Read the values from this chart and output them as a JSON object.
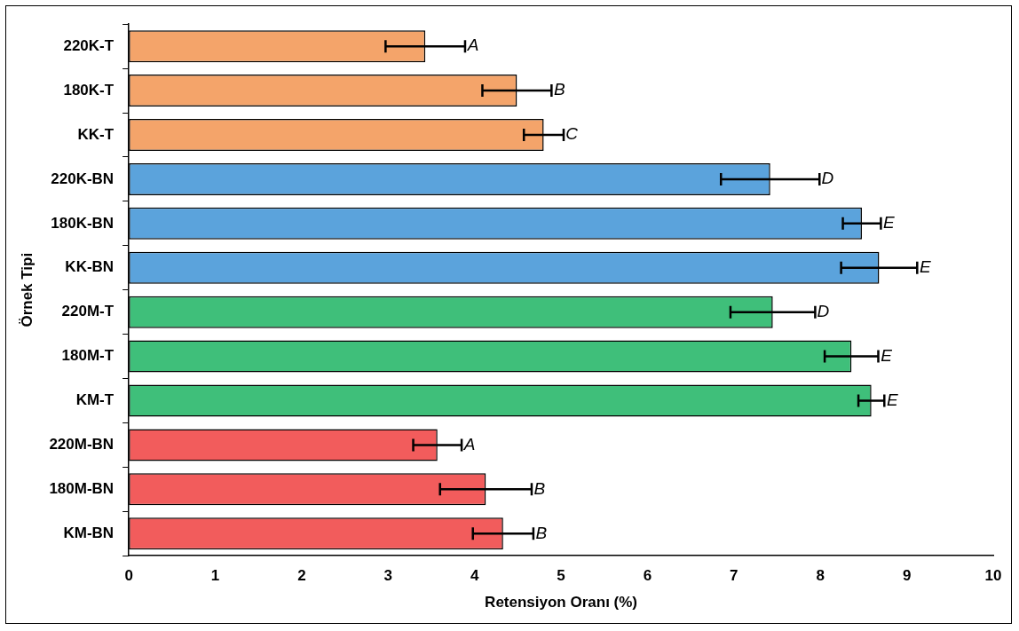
{
  "chart_data": {
    "type": "bar",
    "orientation": "horizontal",
    "xlabel": "Retensiyon Oranı (%)",
    "ylabel": "Örnek Tipi",
    "categories": [
      "220K-T",
      "180K-T",
      "KK-T",
      "220K-BN",
      "180K-BN",
      "KK-BN",
      "220M-T",
      "180M-T",
      "KM-T",
      "220M-BN",
      "180M-BN",
      "KM-BN"
    ],
    "values": [
      3.43,
      4.49,
      4.8,
      7.42,
      8.48,
      8.68,
      7.45,
      8.36,
      8.59,
      3.57,
      4.13,
      4.33
    ],
    "errors": [
      0.46,
      0.4,
      0.23,
      0.57,
      0.22,
      0.44,
      0.49,
      0.31,
      0.15,
      0.28,
      0.53,
      0.35
    ],
    "colors": [
      "#f4a46a",
      "#f4a46a",
      "#f4a46a",
      "#5ba3dc",
      "#5ba3dc",
      "#5ba3dc",
      "#3fbf7a",
      "#3fbf7a",
      "#3fbf7a",
      "#f25c5c",
      "#f25c5c",
      "#f25c5c"
    ],
    "xlim": [
      0,
      10
    ],
    "xticks": [
      0,
      1,
      2,
      3,
      4,
      5,
      6,
      7,
      8,
      9,
      10
    ],
    "grid": false,
    "legend": false,
    "value_labels": [
      "A",
      "B",
      "C",
      "D",
      "E",
      "E",
      "D",
      "E",
      "E",
      "A",
      "B",
      "B"
    ]
  }
}
